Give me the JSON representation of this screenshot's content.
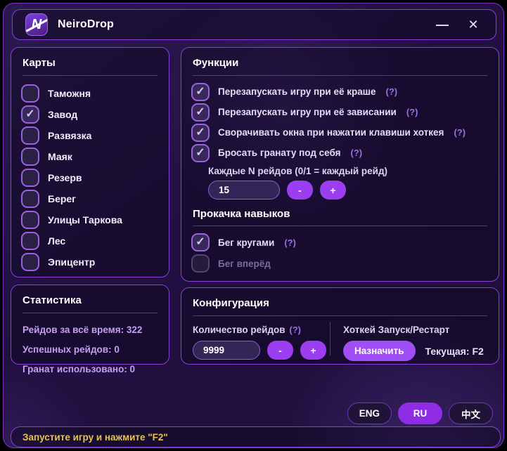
{
  "window": {
    "title": "NeiroDrop",
    "logo_letter": "N",
    "minimize_icon": "—",
    "close_icon": "✕"
  },
  "icons": {
    "check": "✓",
    "minus": "-",
    "plus": "+"
  },
  "maps_panel": {
    "title": "Карты",
    "items": [
      {
        "label": "Таможня",
        "checked": false
      },
      {
        "label": "Завод",
        "checked": true
      },
      {
        "label": "Развязка",
        "checked": false
      },
      {
        "label": "Маяк",
        "checked": false
      },
      {
        "label": "Резерв",
        "checked": false
      },
      {
        "label": "Берег",
        "checked": false
      },
      {
        "label": "Улицы Таркова",
        "checked": false
      },
      {
        "label": "Лес",
        "checked": false
      },
      {
        "label": "Эпицентр",
        "checked": false
      }
    ]
  },
  "stats_panel": {
    "title": "Статистика",
    "lines": [
      "Рейдов за всё время: 322",
      "Успешных рейдов: 0",
      "Гранат использовано: 0"
    ]
  },
  "functions_panel": {
    "title": "Функции",
    "checkboxes": [
      {
        "label": "Перезапускать игру при её краше",
        "hint": "(?)",
        "checked": true
      },
      {
        "label": "Перезапускать игру при её зависании",
        "hint": "(?)",
        "checked": true
      },
      {
        "label": "Сворачивать окна при нажатии клавиши хоткея",
        "hint": "(?)",
        "checked": true
      },
      {
        "label": "Бросать гранату под себя",
        "hint": "(?)",
        "checked": true
      }
    ],
    "n_raids": {
      "label": "Каждые N рейдов (0/1 = каждый рейд)",
      "value": "15"
    },
    "skills": {
      "title": "Прокачка навыков",
      "checkboxes": [
        {
          "label": "Бег кругами",
          "hint": "(?)",
          "checked": true,
          "disabled": false
        },
        {
          "label": "Бег вперёд",
          "hint": "",
          "checked": false,
          "disabled": true
        }
      ]
    }
  },
  "config_panel": {
    "title": "Конфигурация",
    "raid_count": {
      "label": "Количество рейдов",
      "hint": "(?)",
      "value": "9999"
    },
    "hotkey": {
      "label": "Хоткей Запуск/Рестарт",
      "assign_label": "Назначить",
      "current": "Текущая: F2"
    }
  },
  "language": {
    "buttons": [
      {
        "label": "ENG",
        "active": false
      },
      {
        "label": "RU",
        "active": true
      },
      {
        "label": "中文",
        "active": false
      }
    ]
  },
  "status_bar": {
    "text": "Запустите игру и нажмите \"F2\""
  },
  "colors": {
    "accent": "#9b3df0",
    "panel_border": "#8a40d6",
    "stats_text": "#c89df4",
    "status_text": "#e6c255",
    "check": "#d9c4fb"
  }
}
